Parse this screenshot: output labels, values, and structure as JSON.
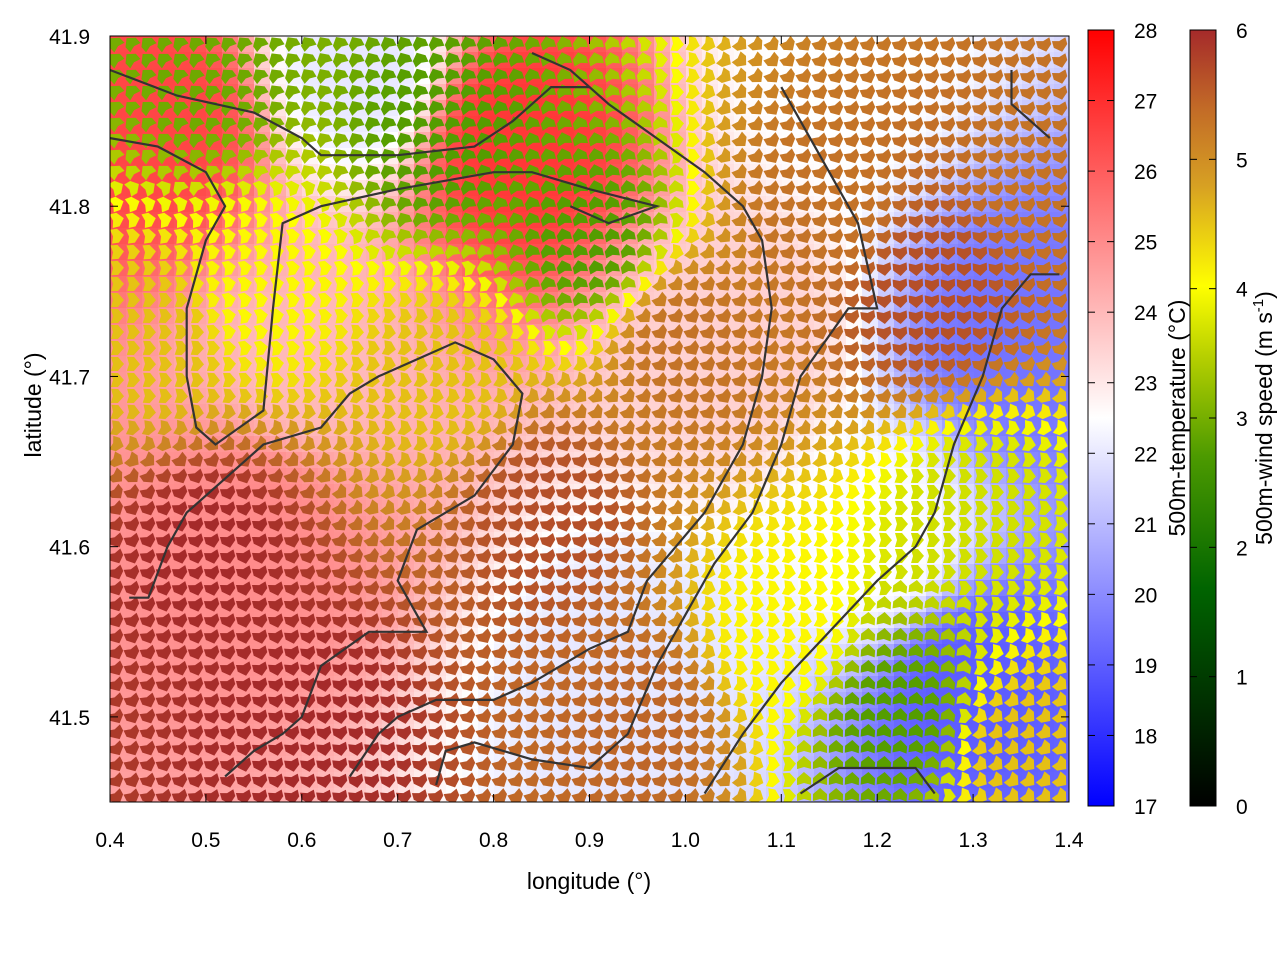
{
  "chart_data": {
    "type": "heatmap",
    "title": "",
    "xlabel": "longitude (°)",
    "ylabel": "latitude (°)",
    "xlim": [
      0.4,
      1.4
    ],
    "ylim": [
      41.45,
      41.9
    ],
    "xticks": [
      0.4,
      0.5,
      0.6,
      0.7,
      0.8,
      0.9,
      1.0,
      1.1,
      1.2,
      1.3,
      1.4
    ],
    "yticks": [
      41.5,
      41.6,
      41.7,
      41.8,
      41.9
    ],
    "xtick_labels": [
      "0.4",
      "0.5",
      "0.6",
      "0.7",
      "0.8",
      "0.9",
      "1.0",
      "1.1",
      "1.2",
      "1.3",
      "1.4"
    ],
    "ytick_labels": [
      "41.5",
      "41.6",
      "41.7",
      "41.8",
      "41.9"
    ],
    "colorbars": [
      {
        "label": "500m-temperature (°C)",
        "range": [
          17,
          28
        ],
        "ticks": [
          17,
          18,
          19,
          20,
          21,
          22,
          23,
          24,
          25,
          26,
          27,
          28
        ],
        "tick_labels": [
          "17",
          "18",
          "19",
          "20",
          "21",
          "22",
          "23",
          "24",
          "25",
          "26",
          "27",
          "28"
        ],
        "palette": [
          "#0000ff",
          "#ffffff",
          "#ff0000"
        ]
      },
      {
        "label": "500m-wind speed (m s-1)",
        "label_parts": {
          "main": "500m-wind speed (m s",
          "sup": "-1",
          "end": ")"
        },
        "range": [
          0,
          6
        ],
        "ticks": [
          0,
          1,
          2,
          3,
          4,
          5,
          6
        ],
        "tick_labels": [
          "0",
          "1",
          "2",
          "3",
          "4",
          "5",
          "6"
        ],
        "palette": [
          "#000000",
          "#006400",
          "#2e8b00",
          "#a0c000",
          "#ffff00",
          "#d8a020",
          "#c06a28",
          "#a52a2a"
        ]
      }
    ],
    "temperature_field": {
      "description_points": [
        {
          "lon": 0.45,
          "lat": 41.85,
          "t": 26.5
        },
        {
          "lon": 0.82,
          "lat": 41.84,
          "t": 26.8
        },
        {
          "lon": 0.66,
          "lat": 41.88,
          "t": 22.0
        },
        {
          "lon": 0.55,
          "lat": 41.62,
          "t": 25.0
        },
        {
          "lon": 0.6,
          "lat": 41.7,
          "t": 24.0
        },
        {
          "lon": 0.95,
          "lat": 41.52,
          "t": 22.0
        },
        {
          "lon": 1.05,
          "lat": 41.72,
          "t": 23.5
        },
        {
          "lon": 1.2,
          "lat": 41.6,
          "t": 22.5
        },
        {
          "lon": 1.35,
          "lat": 41.72,
          "t": 19.5
        },
        {
          "lon": 1.3,
          "lat": 41.52,
          "t": 19.0
        },
        {
          "lon": 1.15,
          "lat": 41.88,
          "t": 22.5
        }
      ]
    },
    "wind_field": {
      "speed_points": [
        {
          "lon": 0.5,
          "lat": 41.88,
          "ws": 2.2
        },
        {
          "lon": 0.75,
          "lat": 41.84,
          "ws": 2.0
        },
        {
          "lon": 0.9,
          "lat": 41.78,
          "ws": 2.0
        },
        {
          "lon": 0.55,
          "lat": 41.75,
          "ws": 3.5
        },
        {
          "lon": 0.45,
          "lat": 41.72,
          "ws": 4.0
        },
        {
          "lon": 0.75,
          "lat": 41.7,
          "ws": 4.0
        },
        {
          "lon": 0.5,
          "lat": 41.6,
          "ws": 6.0
        },
        {
          "lon": 0.6,
          "lat": 41.5,
          "ws": 6.0
        },
        {
          "lon": 0.85,
          "lat": 41.62,
          "ws": 5.5
        },
        {
          "lon": 1.0,
          "lat": 41.72,
          "ws": 5.0
        },
        {
          "lon": 0.95,
          "lat": 41.5,
          "ws": 5.2
        },
        {
          "lon": 1.15,
          "lat": 41.8,
          "ws": 5.0
        },
        {
          "lon": 1.25,
          "lat": 41.75,
          "ws": 5.5
        },
        {
          "lon": 1.3,
          "lat": 41.62,
          "ws": 3.0
        },
        {
          "lon": 1.22,
          "lat": 41.5,
          "ws": 2.0
        },
        {
          "lon": 1.35,
          "lat": 41.48,
          "ws": 4.0
        },
        {
          "lon": 1.1,
          "lat": 41.55,
          "ws": 3.5
        },
        {
          "lon": 1.38,
          "lat": 41.82,
          "ws": 5.0
        }
      ]
    },
    "contours": [
      {
        "path": [
          [
            0.4,
            41.84
          ],
          [
            0.45,
            41.835
          ],
          [
            0.5,
            41.82
          ],
          [
            0.52,
            41.8
          ],
          [
            0.5,
            41.78
          ],
          [
            0.48,
            41.74
          ],
          [
            0.48,
            41.7
          ],
          [
            0.49,
            41.67
          ],
          [
            0.51,
            41.66
          ],
          [
            0.56,
            41.68
          ],
          [
            0.57,
            41.74
          ],
          [
            0.58,
            41.79
          ],
          [
            0.62,
            41.8
          ],
          [
            0.7,
            41.81
          ],
          [
            0.8,
            41.82
          ],
          [
            0.84,
            41.82
          ],
          [
            0.9,
            41.81
          ],
          [
            0.97,
            41.8
          ],
          [
            0.92,
            41.79
          ],
          [
            0.88,
            41.8
          ]
        ]
      },
      {
        "path": [
          [
            0.4,
            41.88
          ],
          [
            0.47,
            41.865
          ],
          [
            0.55,
            41.855
          ],
          [
            0.6,
            41.84
          ],
          [
            0.62,
            41.83
          ],
          [
            0.7,
            41.83
          ],
          [
            0.78,
            41.835
          ],
          [
            0.82,
            41.85
          ],
          [
            0.86,
            41.87
          ],
          [
            0.9,
            41.87
          ]
        ]
      },
      {
        "path": [
          [
            0.42,
            41.57
          ],
          [
            0.44,
            41.57
          ],
          [
            0.46,
            41.6
          ],
          [
            0.48,
            41.62
          ],
          [
            0.52,
            41.64
          ],
          [
            0.56,
            41.66
          ],
          [
            0.62,
            41.67
          ],
          [
            0.65,
            41.69
          ],
          [
            0.68,
            41.7
          ],
          [
            0.72,
            41.71
          ],
          [
            0.76,
            41.72
          ],
          [
            0.8,
            41.71
          ],
          [
            0.83,
            41.69
          ],
          [
            0.82,
            41.66
          ],
          [
            0.78,
            41.63
          ],
          [
            0.72,
            41.61
          ],
          [
            0.7,
            41.58
          ],
          [
            0.73,
            41.55
          ],
          [
            0.69,
            41.55
          ],
          [
            0.67,
            41.55
          ],
          [
            0.62,
            41.53
          ],
          [
            0.6,
            41.5
          ],
          [
            0.58,
            41.49
          ],
          [
            0.55,
            41.48
          ],
          [
            0.52,
            41.465
          ]
        ]
      },
      {
        "path": [
          [
            0.65,
            41.465
          ],
          [
            0.68,
            41.49
          ],
          [
            0.7,
            41.5
          ],
          [
            0.74,
            41.51
          ],
          [
            0.8,
            41.51
          ],
          [
            0.84,
            41.52
          ],
          [
            0.9,
            41.54
          ],
          [
            0.94,
            41.55
          ],
          [
            0.96,
            41.58
          ],
          [
            0.99,
            41.6
          ],
          [
            1.02,
            41.62
          ],
          [
            1.06,
            41.66
          ],
          [
            1.08,
            41.7
          ],
          [
            1.09,
            41.74
          ],
          [
            1.08,
            41.78
          ],
          [
            1.06,
            41.8
          ],
          [
            1.02,
            41.82
          ],
          [
            0.97,
            41.84
          ],
          [
            0.92,
            41.86
          ],
          [
            0.88,
            41.88
          ],
          [
            0.84,
            41.89
          ]
        ]
      },
      {
        "path": [
          [
            0.74,
            41.46
          ],
          [
            0.75,
            41.48
          ],
          [
            0.78,
            41.485
          ],
          [
            0.84,
            41.475
          ],
          [
            0.9,
            41.47
          ],
          [
            0.94,
            41.49
          ],
          [
            0.97,
            41.53
          ],
          [
            1.0,
            41.56
          ],
          [
            1.03,
            41.59
          ],
          [
            1.07,
            41.62
          ],
          [
            1.1,
            41.66
          ],
          [
            1.12,
            41.7
          ],
          [
            1.17,
            41.74
          ],
          [
            1.2,
            41.74
          ],
          [
            1.18,
            41.79
          ],
          [
            1.15,
            41.82
          ],
          [
            1.12,
            41.85
          ],
          [
            1.1,
            41.87
          ]
        ]
      },
      {
        "path": [
          [
            1.02,
            41.455
          ],
          [
            1.06,
            41.49
          ],
          [
            1.1,
            41.52
          ],
          [
            1.15,
            41.55
          ],
          [
            1.2,
            41.58
          ],
          [
            1.24,
            41.6
          ],
          [
            1.26,
            41.62
          ],
          [
            1.28,
            41.66
          ],
          [
            1.31,
            41.7
          ],
          [
            1.33,
            41.74
          ],
          [
            1.36,
            41.76
          ],
          [
            1.39,
            41.76
          ]
        ]
      },
      {
        "path": [
          [
            1.12,
            41.455
          ],
          [
            1.16,
            41.47
          ],
          [
            1.2,
            41.47
          ],
          [
            1.24,
            41.47
          ],
          [
            1.26,
            41.455
          ]
        ]
      },
      {
        "path": [
          [
            1.34,
            41.88
          ],
          [
            1.34,
            41.86
          ],
          [
            1.38,
            41.84
          ]
        ]
      }
    ]
  }
}
